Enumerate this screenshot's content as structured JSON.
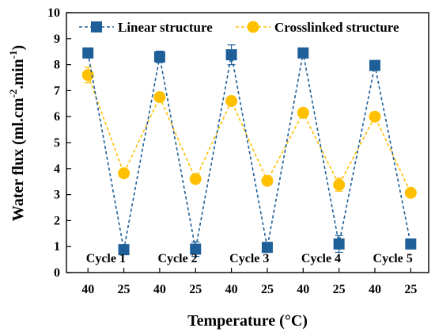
{
  "chart_data": {
    "type": "line",
    "xlabel": "Temperature (°C)",
    "ylabel_parts": [
      "Water flux (ml.cm",
      "-2",
      ".min",
      "-1",
      ")"
    ],
    "ylim": [
      0,
      10
    ],
    "yticks": [
      0,
      1,
      2,
      3,
      4,
      5,
      6,
      7,
      8,
      9,
      10
    ],
    "categories": [
      "40",
      "25",
      "40",
      "25",
      "40",
      "25",
      "40",
      "25",
      "40",
      "25"
    ],
    "series": [
      {
        "name": "Linear structure",
        "color": "#1f5f99",
        "marker": "square",
        "line_style": "dashed",
        "values": [
          8.45,
          0.88,
          8.3,
          0.9,
          8.38,
          0.97,
          8.45,
          1.1,
          7.97,
          1.1
        ],
        "error": [
          0.12,
          0.1,
          0.22,
          0.28,
          0.38,
          0.1,
          0.1,
          0.32,
          0.1,
          0.1
        ]
      },
      {
        "name": "Crosslinked structure",
        "color": "#ffc000",
        "marker": "circle",
        "line_style": "dashed",
        "values": [
          7.6,
          3.82,
          6.75,
          3.6,
          6.6,
          3.53,
          6.15,
          3.38,
          6.0,
          3.07
        ],
        "error": [
          0.3,
          0.1,
          0.1,
          0.1,
          0.1,
          0.1,
          0.1,
          0.25,
          0.1,
          0.1
        ]
      }
    ],
    "annotations": [
      "Cycle 1",
      "Cycle 2",
      "Cycle 3",
      "Cycle 4",
      "Cycle 5"
    ],
    "legend_position": "top",
    "grid": false
  }
}
